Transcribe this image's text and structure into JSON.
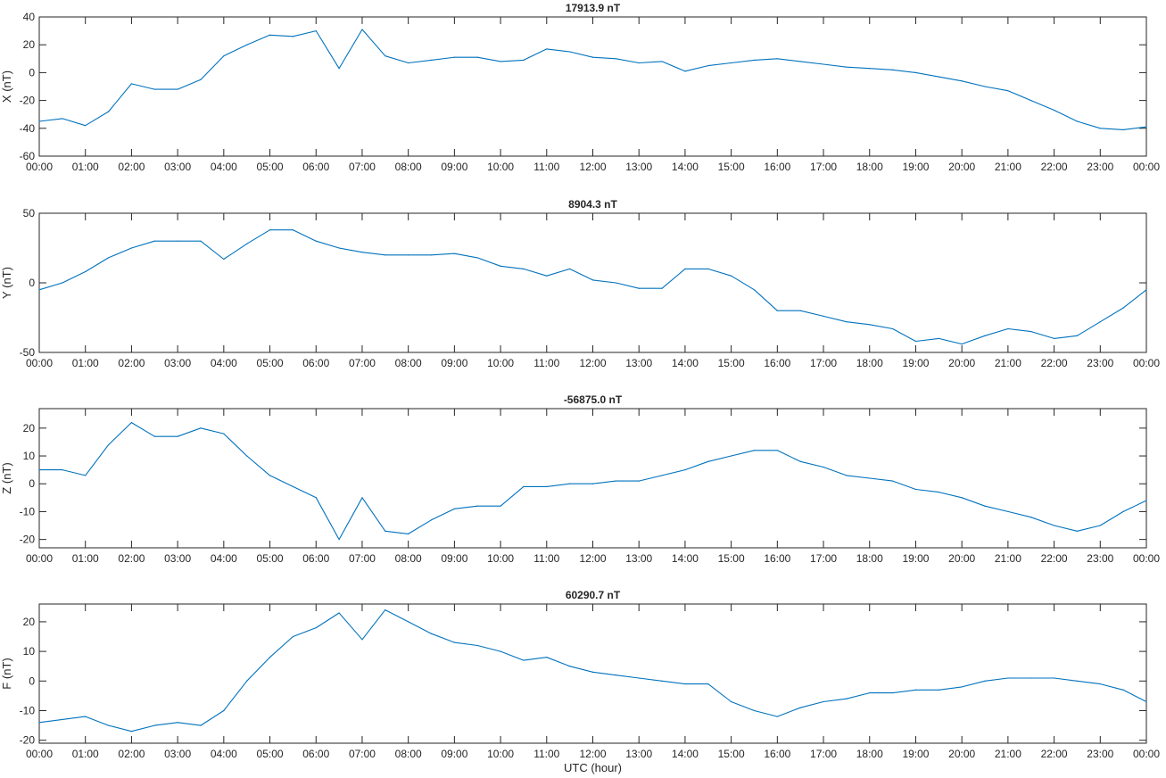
{
  "chart_data": [
    {
      "type": "line",
      "title": "17913.9 nT",
      "xlabel": "",
      "ylabel": "X (nT)",
      "ylim": [
        -60,
        40
      ],
      "yticks": [
        -60,
        -40,
        -20,
        0,
        20,
        40
      ],
      "xlim": [
        0,
        24
      ],
      "xtick_labels": [
        "00:00",
        "01:00",
        "02:00",
        "03:00",
        "04:00",
        "05:00",
        "06:00",
        "07:00",
        "08:00",
        "09:00",
        "10:00",
        "11:00",
        "12:00",
        "13:00",
        "14:00",
        "15:00",
        "16:00",
        "17:00",
        "18:00",
        "19:00",
        "20:00",
        "21:00",
        "22:00",
        "23:00",
        "00:00"
      ],
      "color": "#0072BD",
      "x_hours_step": 0.5,
      "values": [
        -35,
        -33,
        -38,
        -28,
        -8,
        -12,
        -12,
        -5,
        12,
        20,
        27,
        26,
        30,
        3,
        31,
        12,
        7,
        9,
        11,
        11,
        8,
        9,
        17,
        15,
        11,
        10,
        7,
        8,
        1,
        5,
        7,
        9,
        10,
        8,
        6,
        4,
        3,
        2,
        0,
        -3,
        -6,
        -10,
        -13,
        -20,
        -27,
        -35,
        -40,
        -41,
        -39
      ]
    },
    {
      "type": "line",
      "title": "8904.3 nT",
      "xlabel": "",
      "ylabel": "Y (nT)",
      "ylim": [
        -50,
        50
      ],
      "yticks": [
        -50,
        0,
        50
      ],
      "xlim": [
        0,
        24
      ],
      "xtick_labels": [
        "00:00",
        "01:00",
        "02:00",
        "03:00",
        "04:00",
        "05:00",
        "06:00",
        "07:00",
        "08:00",
        "09:00",
        "10:00",
        "11:00",
        "12:00",
        "13:00",
        "14:00",
        "15:00",
        "16:00",
        "17:00",
        "18:00",
        "19:00",
        "20:00",
        "21:00",
        "22:00",
        "23:00",
        "00:00"
      ],
      "color": "#0072BD",
      "x_hours_step": 0.5,
      "values": [
        -5,
        0,
        8,
        18,
        25,
        30,
        30,
        30,
        17,
        28,
        38,
        38,
        30,
        25,
        22,
        20,
        20,
        20,
        21,
        18,
        12,
        10,
        5,
        10,
        2,
        0,
        -4,
        -4,
        10,
        10,
        5,
        -5,
        -20,
        -20,
        -24,
        -28,
        -30,
        -33,
        -42,
        -40,
        -44,
        -38,
        -33,
        -35,
        -40,
        -38,
        -28,
        -18,
        -5
      ]
    },
    {
      "type": "line",
      "title": "-56875.0 nT",
      "xlabel": "",
      "ylabel": "Z (nT)",
      "ylim": [
        -23,
        27
      ],
      "yticks": [
        -20,
        -10,
        0,
        10,
        20
      ],
      "xlim": [
        0,
        24
      ],
      "xtick_labels": [
        "00:00",
        "01:00",
        "02:00",
        "03:00",
        "04:00",
        "05:00",
        "06:00",
        "07:00",
        "08:00",
        "09:00",
        "10:00",
        "11:00",
        "12:00",
        "13:00",
        "14:00",
        "15:00",
        "16:00",
        "17:00",
        "18:00",
        "19:00",
        "20:00",
        "21:00",
        "22:00",
        "23:00",
        "00:00"
      ],
      "color": "#0072BD",
      "x_hours_step": 0.5,
      "values": [
        5,
        5,
        3,
        14,
        22,
        17,
        17,
        20,
        18,
        10,
        3,
        -1,
        -5,
        -20,
        -5,
        -17,
        -18,
        -13,
        -9,
        -8,
        -8,
        -1,
        -1,
        0,
        0,
        1,
        1,
        3,
        5,
        8,
        10,
        12,
        12,
        8,
        6,
        3,
        2,
        1,
        -2,
        -3,
        -5,
        -8,
        -10,
        -12,
        -15,
        -17,
        -15,
        -10,
        -6
      ]
    },
    {
      "type": "line",
      "title": "60290.7 nT",
      "xlabel": "UTC (hour)",
      "ylabel": "F (nT)",
      "ylim": [
        -21,
        26
      ],
      "yticks": [
        -20,
        -10,
        0,
        10,
        20
      ],
      "xlim": [
        0,
        24
      ],
      "xtick_labels": [
        "00:00",
        "01:00",
        "02:00",
        "03:00",
        "04:00",
        "05:00",
        "06:00",
        "07:00",
        "08:00",
        "09:00",
        "10:00",
        "11:00",
        "12:00",
        "13:00",
        "14:00",
        "15:00",
        "16:00",
        "17:00",
        "18:00",
        "19:00",
        "20:00",
        "21:00",
        "22:00",
        "23:00",
        "00:00"
      ],
      "color": "#0072BD",
      "x_hours_step": 0.5,
      "values": [
        -14,
        -13,
        -12,
        -15,
        -17,
        -15,
        -14,
        -15,
        -10,
        0,
        8,
        15,
        18,
        23,
        14,
        24,
        20,
        16,
        13,
        12,
        10,
        7,
        8,
        5,
        3,
        2,
        1,
        0,
        -1,
        -1,
        -7,
        -10,
        -12,
        -9,
        -7,
        -6,
        -4,
        -4,
        -3,
        -3,
        -2,
        0,
        1,
        1,
        1,
        0,
        -1,
        -3,
        -7
      ]
    }
  ]
}
